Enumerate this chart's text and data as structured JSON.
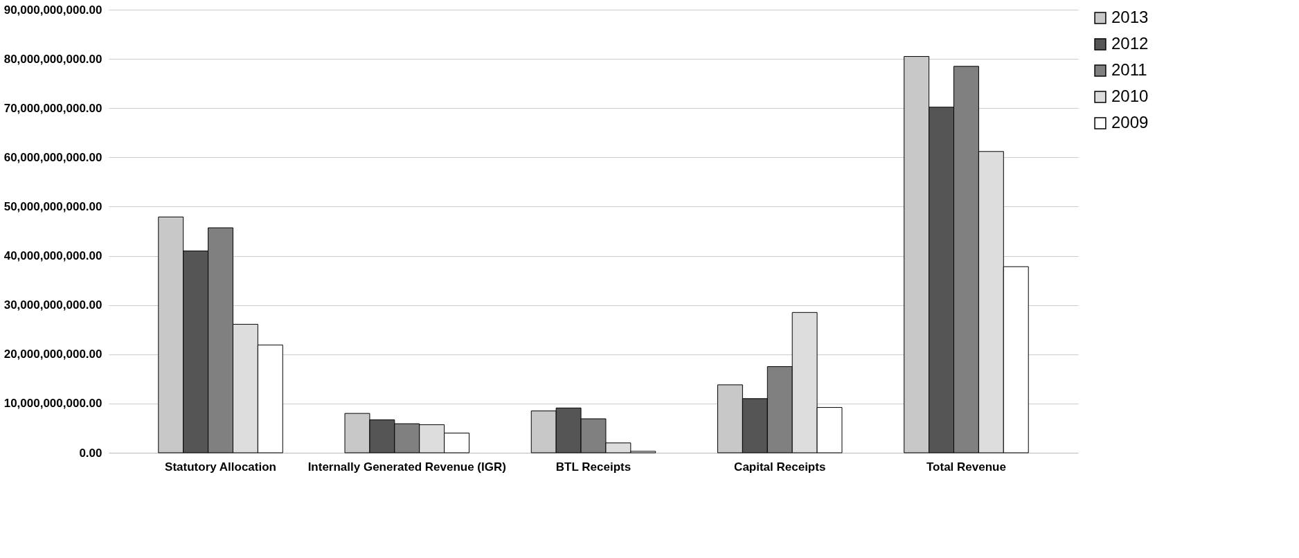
{
  "chart_data": {
    "type": "bar",
    "categories": [
      "Statutory Allocation",
      "Internally Generated Revenue (IGR)",
      "BTL Receipts",
      "Capital Receipts",
      "Total Revenue"
    ],
    "series": [
      {
        "name": "2013",
        "color": "#c8c8c8",
        "values": [
          47900000000,
          8000000000,
          8500000000,
          13800000000,
          80500000000
        ]
      },
      {
        "name": "2012",
        "color": "#555555",
        "values": [
          41000000000,
          6700000000,
          9100000000,
          11000000000,
          70200000000
        ]
      },
      {
        "name": "2011",
        "color": "#808080",
        "values": [
          45700000000,
          5900000000,
          6900000000,
          17500000000,
          78500000000
        ]
      },
      {
        "name": "2010",
        "color": "#dddddd",
        "values": [
          26100000000,
          5700000000,
          2000000000,
          28500000000,
          61200000000
        ]
      },
      {
        "name": "2009",
        "color": "#ffffff",
        "values": [
          21900000000,
          4000000000,
          300000000,
          9200000000,
          37800000000
        ]
      }
    ],
    "ylim": [
      0,
      90000000000
    ],
    "yticks": [
      {
        "value": 0,
        "label": "0.00"
      },
      {
        "value": 10000000000,
        "label": "10,000,000,000.00"
      },
      {
        "value": 20000000000,
        "label": "20,000,000,000.00"
      },
      {
        "value": 30000000000,
        "label": "30,000,000,000.00"
      },
      {
        "value": 40000000000,
        "label": "40,000,000,000.00"
      },
      {
        "value": 50000000000,
        "label": "50,000,000,000.00"
      },
      {
        "value": 60000000000,
        "label": "60,000,000,000.00"
      },
      {
        "value": 70000000000,
        "label": "70,000,000,000.00"
      },
      {
        "value": 80000000000,
        "label": "80,000,000,000.00"
      },
      {
        "value": 90000000000,
        "label": "90,000,000,000.00"
      }
    ],
    "grid": "y",
    "legend": "right"
  }
}
